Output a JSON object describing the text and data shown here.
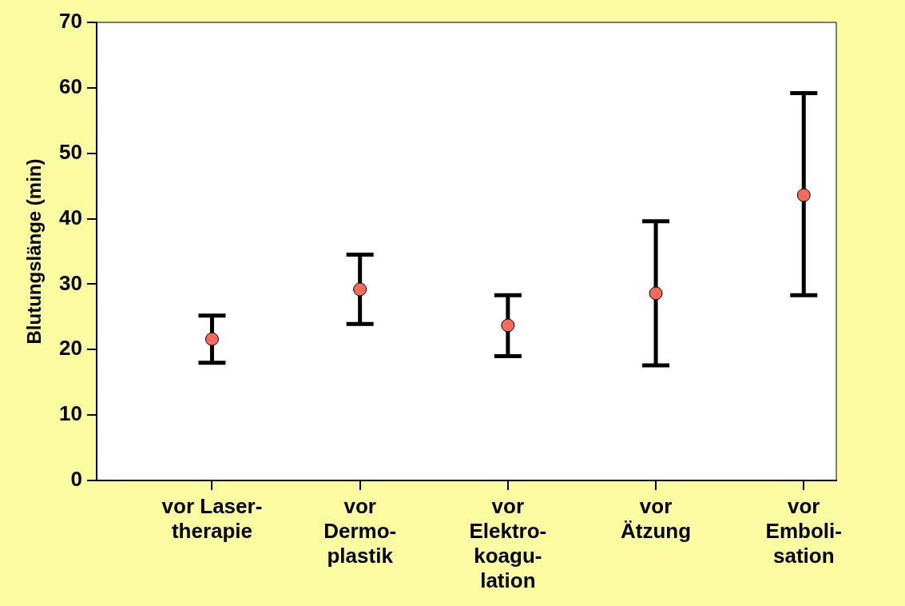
{
  "chart_data": {
    "type": "scatter",
    "ylabel": "Blutungslänge (min)",
    "categories": [
      "vor Laser-\ntherapie",
      "vor\nDermo-\nplastik",
      "vor\nElektro-\nkoagu-\nlation",
      "vor\nÄtzung",
      "vor\nEmboli-\nsation"
    ],
    "values": [
      21.6,
      29.2,
      23.7,
      28.6,
      43.6
    ],
    "errors": [
      [
        18.0,
        25.2
      ],
      [
        23.9,
        34.5
      ],
      [
        19.0,
        28.3
      ],
      [
        17.6,
        39.6
      ],
      [
        28.3,
        59.2
      ]
    ],
    "color": "#f26b5b",
    "marker": "circle",
    "ylim": [
      0,
      70
    ],
    "yticks": [
      0,
      10,
      20,
      30,
      40,
      50,
      60,
      70
    ],
    "grid": false,
    "legend": false
  }
}
